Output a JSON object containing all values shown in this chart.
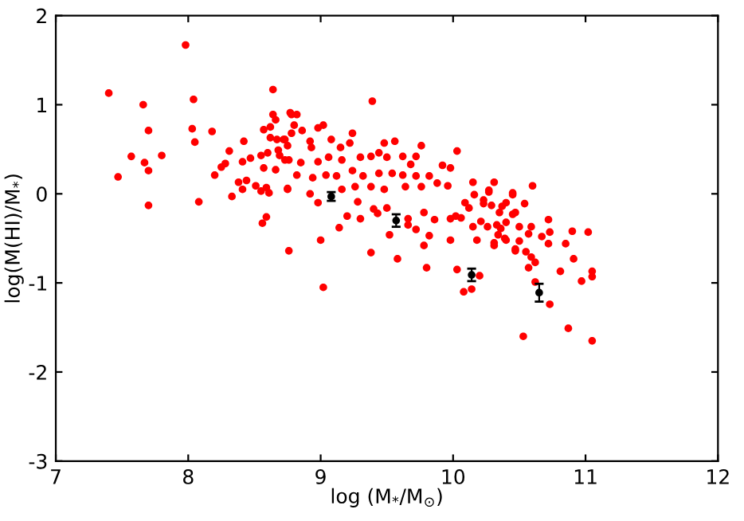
{
  "chart_data": {
    "type": "scatter",
    "xlabel": "log (M$_{*}$/M$_{⊙}$)",
    "ylabel": "log(M(HI)/M$_{*}$)",
    "xlim": [
      7,
      12
    ],
    "ylim": [
      -3,
      2
    ],
    "xticks": [
      7,
      8,
      9,
      10,
      11,
      12
    ],
    "yticks": [
      -3,
      -2,
      -1,
      0,
      1,
      2
    ],
    "grid": false,
    "marker": "circle",
    "series": [
      {
        "color": "#ff0000",
        "x": [
          7.98,
          7.4,
          7.66,
          8.04,
          7.7,
          8.03,
          8.05,
          8.18,
          7.57,
          7.67,
          7.8,
          7.7,
          7.47,
          7.7,
          8.08,
          8.2,
          8.31,
          8.42,
          8.25,
          8.28,
          8.41,
          8.47,
          8.55,
          8.38,
          8.33,
          8.44,
          8.41,
          8.51,
          8.55,
          8.59,
          8.61,
          8.57,
          8.66,
          8.6,
          8.64,
          8.64,
          8.66,
          8.78,
          8.57,
          8.62,
          8.62,
          8.67,
          8.72,
          8.78,
          8.68,
          8.75,
          8.69,
          8.73,
          8.75,
          8.59,
          8.56,
          8.76,
          9.39,
          8.77,
          8.82,
          8.8,
          8.86,
          8.98,
          9.02,
          8.73,
          8.92,
          8.93,
          9.08,
          9.24,
          9.22,
          9.15,
          8.76,
          8.85,
          8.98,
          9.06,
          9.16,
          8.82,
          8.94,
          9.04,
          9.12,
          9.24,
          9.3,
          9.38,
          9.48,
          9.56,
          9.44,
          9.5,
          9.62,
          9.76,
          9.72,
          9.68,
          10.03,
          9.32,
          9.44,
          9.54,
          9.62,
          9.72,
          9.82,
          9.92,
          9.98,
          8.75,
          8.92,
          9.16,
          9.26,
          9.38,
          9.48,
          9.64,
          9.76,
          9.88,
          9.96,
          8.98,
          9.28,
          9.4,
          9.43,
          9.2,
          9.3,
          9.5,
          9.66,
          9.66,
          9.78,
          9.86,
          9.98,
          9.72,
          9.52,
          9.14,
          9.0,
          9.82,
          9.98,
          9.78,
          9.38,
          10.15,
          10.31,
          10.27,
          10.16,
          10.09,
          10.23,
          10.45,
          10.29,
          10.12,
          10.02,
          10.06,
          10.21,
          10.35,
          10.45,
          10.4,
          10.15,
          10.26,
          10.36,
          10.34,
          10.18,
          10.31,
          10.4,
          10.47,
          10.6,
          10.45,
          10.27,
          10.23,
          10.37,
          10.54,
          10.47,
          10.33,
          10.4,
          10.5,
          10.59,
          10.72,
          10.57,
          10.67,
          10.73,
          10.9,
          11.02,
          10.39,
          10.31,
          10.5,
          10.72,
          10.85,
          10.47,
          10.55,
          10.59,
          10.62,
          10.91,
          10.57,
          10.81,
          11.05,
          11.05,
          10.97,
          10.62,
          10.73,
          10.87,
          10.53,
          11.05,
          10.2,
          9.58,
          9.02,
          9.8,
          10.03,
          10.08,
          10.14
        ],
        "values": [
          1.67,
          1.13,
          1.0,
          1.06,
          0.71,
          0.73,
          0.58,
          0.7,
          0.42,
          0.35,
          0.43,
          0.26,
          0.19,
          -0.13,
          -0.09,
          0.21,
          0.48,
          0.59,
          0.3,
          0.34,
          0.36,
          0.4,
          0.43,
          0.13,
          -0.03,
          0.15,
          0.05,
          0.09,
          0.03,
          0.07,
          0.01,
          0.29,
          0.27,
          0.46,
          1.17,
          0.89,
          0.83,
          0.89,
          0.72,
          0.75,
          0.63,
          0.61,
          0.61,
          0.68,
          0.49,
          0.54,
          0.43,
          0.38,
          0.05,
          -0.26,
          -0.33,
          -0.64,
          1.04,
          0.91,
          0.89,
          0.77,
          0.71,
          0.74,
          0.77,
          0.61,
          0.59,
          0.52,
          0.61,
          0.68,
          0.57,
          0.52,
          0.38,
          0.35,
          0.36,
          0.41,
          0.38,
          0.21,
          0.18,
          0.21,
          0.2,
          0.26,
          0.41,
          0.42,
          0.57,
          0.59,
          0.46,
          0.41,
          0.42,
          0.54,
          0.42,
          0.33,
          0.48,
          0.2,
          0.23,
          0.23,
          0.21,
          0.2,
          0.2,
          0.32,
          0.29,
          0.06,
          0.0,
          0.05,
          0.08,
          0.08,
          0.05,
          0.08,
          0.08,
          0.12,
          0.09,
          -0.1,
          -0.09,
          -0.17,
          -0.22,
          -0.25,
          -0.28,
          -0.16,
          -0.28,
          -0.35,
          -0.21,
          -0.29,
          -0.28,
          -0.4,
          -0.46,
          -0.38,
          -0.52,
          -0.47,
          -0.52,
          -0.58,
          -0.66,
          0.13,
          0.13,
          0.02,
          -0.01,
          -0.1,
          -0.07,
          -0.01,
          -0.13,
          -0.16,
          -0.25,
          -0.27,
          -0.31,
          -0.21,
          -0.23,
          -0.1,
          -0.37,
          -0.37,
          -0.39,
          -0.46,
          -0.52,
          -0.55,
          -0.52,
          -0.64,
          0.09,
          0.01,
          0.04,
          -0.11,
          -0.14,
          -0.11,
          -0.21,
          -0.35,
          -0.32,
          -0.37,
          -0.37,
          -0.29,
          -0.45,
          -0.48,
          -0.43,
          -0.42,
          -0.43,
          -0.5,
          -0.58,
          -0.53,
          -0.56,
          -0.56,
          -0.62,
          -0.65,
          -0.71,
          -0.77,
          -0.73,
          -0.83,
          -0.87,
          -0.87,
          -0.93,
          -0.98,
          -0.99,
          -1.24,
          -1.51,
          -1.6,
          -1.65,
          -0.92,
          -0.73,
          -1.05,
          -0.83,
          -0.85,
          -1.1,
          -1.07
        ]
      },
      {
        "color": "#000000",
        "x": [
          9.08,
          9.57,
          10.14,
          10.65
        ],
        "values": [
          -0.03,
          -0.3,
          -0.91,
          -1.11
        ],
        "errors": [
          0.05,
          0.07,
          0.07,
          0.1
        ]
      }
    ]
  }
}
